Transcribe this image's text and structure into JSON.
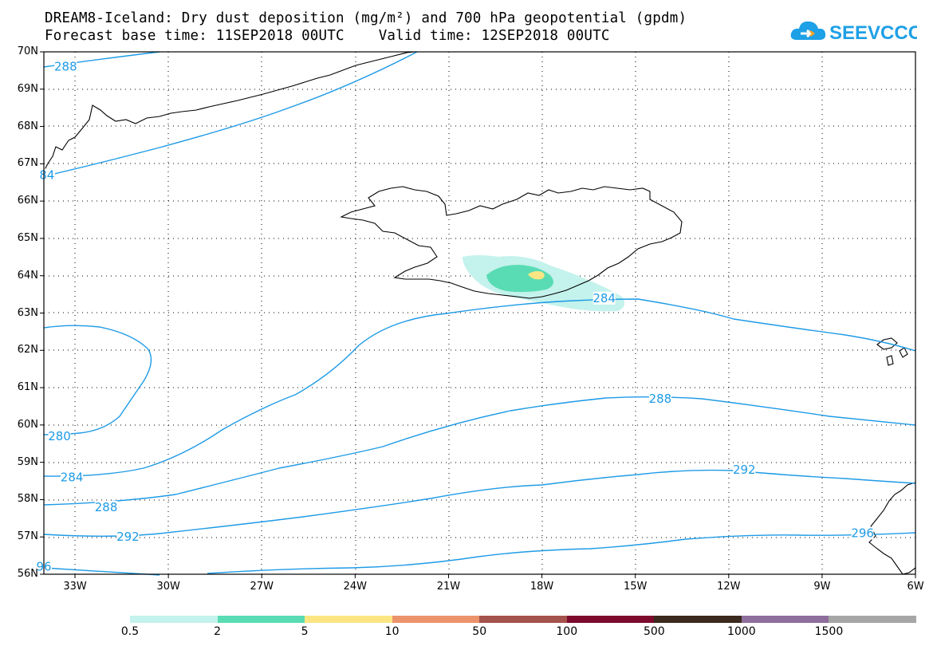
{
  "header": {
    "title_line1": "DREAM8-Iceland: Dry dust deposition (mg/m²) and 700 hPa geopotential (gpdm)",
    "title_line2": "Forecast base time: 11SEP2018 00UTC    Valid time: 12SEP2018 00UTC",
    "logo_text": "SEEVCCC",
    "logo_icon": "cloud-icon",
    "logo_color": "#1ea0e6"
  },
  "axes": {
    "lat_labels": [
      "70N",
      "69N",
      "68N",
      "67N",
      "66N",
      "65N",
      "64N",
      "63N",
      "62N",
      "61N",
      "60N",
      "59N",
      "58N",
      "57N",
      "56N"
    ],
    "lon_labels": [
      "33W",
      "30W",
      "27W",
      "24W",
      "21W",
      "18W",
      "15W",
      "12W",
      "9W",
      "6W"
    ]
  },
  "contours": {
    "color": "#1e9be6",
    "labels": [
      {
        "text": "288",
        "lon": -33.3,
        "lat": 69.6
      },
      {
        "text": "84",
        "lon": -33.9,
        "lat": 66.7
      },
      {
        "text": "284",
        "lon": -16.0,
        "lat": 63.4
      },
      {
        "text": "280",
        "lon": -33.5,
        "lat": 59.7
      },
      {
        "text": "288",
        "lon": -14.2,
        "lat": 60.7
      },
      {
        "text": "284",
        "lon": -33.1,
        "lat": 58.6
      },
      {
        "text": "292",
        "lon": -11.5,
        "lat": 58.8
      },
      {
        "text": "288",
        "lon": -32.0,
        "lat": 57.8
      },
      {
        "text": "292",
        "lon": -31.3,
        "lat": 57.0
      },
      {
        "text": "296",
        "lon": -7.7,
        "lat": 57.1
      },
      {
        "text": "96",
        "lon": -34.0,
        "lat": 56.2
      }
    ]
  },
  "colorbar": {
    "colors": [
      "#c4f2ec",
      "#59dcb3",
      "#fbe683",
      "#ec936c",
      "#a4524c",
      "#7c0a2c",
      "#3b2a1d",
      "#8e6e9c",
      "#a6a6a6"
    ],
    "labels": [
      "0.5",
      "2",
      "5",
      "10",
      "50",
      "100",
      "500",
      "1000",
      "1500"
    ]
  }
}
